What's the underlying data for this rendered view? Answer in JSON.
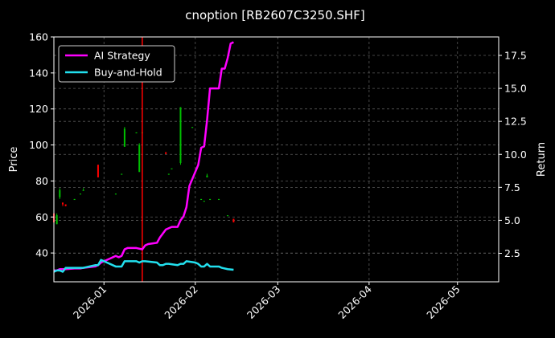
{
  "chart_data": {
    "type": "line",
    "title": "cnoption [RB2607C3250.SHF]",
    "ylabel": "Price",
    "y2label": "Return",
    "xlim": [
      "2025-12-15",
      "2026-05-15"
    ],
    "ylim": [
      24,
      160
    ],
    "y2lim": [
      0.34,
      18.9
    ],
    "x_ticks": [
      "2026-01-01",
      "2026-02-01",
      "2026-03-01",
      "2026-04-01",
      "2026-05-01"
    ],
    "x_tick_labels": [
      "2026-01",
      "2026-02",
      "2026-03",
      "2026-04",
      "2026-05"
    ],
    "y_ticks": [
      40,
      60,
      80,
      100,
      120,
      140,
      160
    ],
    "y2_ticks": [
      2.5,
      5.0,
      7.5,
      10.0,
      12.5,
      15.0,
      17.5
    ],
    "y2_tick_labels": [
      "2.5",
      "5.0",
      "7.5",
      "10.0",
      "12.5",
      "15.0",
      "17.5"
    ],
    "grid": true,
    "legend": "upper-left",
    "vline": {
      "date": "2026-01-14",
      "color": "#ff0000"
    },
    "candles": [
      {
        "date": "2025-12-15",
        "open": 62,
        "close": 57,
        "high": 62,
        "low": 56
      },
      {
        "date": "2025-12-16",
        "open": 56,
        "close": 61,
        "high": 62,
        "low": 56
      },
      {
        "date": "2025-12-17",
        "open": 71,
        "close": 75,
        "high": 76,
        "low": 70
      },
      {
        "date": "2025-12-18",
        "open": 68,
        "close": 67,
        "high": 68,
        "low": 66
      },
      {
        "date": "2025-12-19",
        "open": 67,
        "close": 66,
        "high": 67,
        "low": 66
      },
      {
        "date": "2025-12-22",
        "open": 70,
        "close": 70,
        "high": 70,
        "low": 70
      },
      {
        "date": "2025-12-24",
        "open": 73,
        "close": 73,
        "high": 73,
        "low": 73
      },
      {
        "date": "2025-12-25",
        "open": 75,
        "close": 75,
        "high": 76,
        "low": 75
      },
      {
        "date": "2025-12-30",
        "open": 89,
        "close": 82,
        "high": 89,
        "low": 82
      },
      {
        "date": "2026-01-05",
        "open": 73,
        "close": 73,
        "high": 73,
        "low": 73
      },
      {
        "date": "2026-01-07",
        "open": 84,
        "close": 84,
        "high": 84,
        "low": 84
      },
      {
        "date": "2026-01-08",
        "open": 99,
        "close": 109,
        "high": 110,
        "low": 99
      },
      {
        "date": "2026-01-12",
        "open": 107,
        "close": 107,
        "high": 107,
        "low": 107
      },
      {
        "date": "2026-01-13",
        "open": 85,
        "close": 100,
        "high": 101,
        "low": 85
      },
      {
        "date": "2026-01-14",
        "open": 107,
        "close": 107,
        "high": 107,
        "low": 107
      },
      {
        "date": "2026-01-22",
        "open": 96,
        "close": 95,
        "high": 96,
        "low": 95
      },
      {
        "date": "2026-01-23",
        "open": 84,
        "close": 84,
        "high": 84,
        "low": 84
      },
      {
        "date": "2026-01-24",
        "open": 87,
        "close": 87,
        "high": 87,
        "low": 87
      },
      {
        "date": "2026-01-27",
        "open": 90,
        "close": 121,
        "high": 121,
        "low": 89
      },
      {
        "date": "2026-01-31",
        "open": 110,
        "close": 110,
        "high": 110,
        "low": 110
      },
      {
        "date": "2026-02-03",
        "open": 70,
        "close": 70,
        "high": 70,
        "low": 70
      },
      {
        "date": "2026-02-04",
        "open": 69,
        "close": 69,
        "high": 69,
        "low": 69
      },
      {
        "date": "2026-02-05",
        "open": 82,
        "close": 83,
        "high": 84,
        "low": 82
      },
      {
        "date": "2026-02-06",
        "open": 70,
        "close": 70,
        "high": 70,
        "low": 70
      },
      {
        "date": "2026-02-09",
        "open": 70,
        "close": 70,
        "high": 70,
        "low": 70
      },
      {
        "date": "2026-02-12",
        "open": 61,
        "close": 61,
        "high": 61,
        "low": 61
      },
      {
        "date": "2026-02-14",
        "open": 59,
        "close": 57,
        "high": 59,
        "low": 57
      }
    ],
    "series": [
      {
        "name": "AI Strategy",
        "color": "#ff00ff",
        "axis": "right",
        "points": [
          [
            "2025-12-15",
            1.2
          ],
          [
            "2025-12-16",
            1.2
          ],
          [
            "2025-12-17",
            1.3
          ],
          [
            "2025-12-18",
            1.3
          ],
          [
            "2025-12-19",
            1.3
          ],
          [
            "2025-12-22",
            1.35
          ],
          [
            "2025-12-24",
            1.35
          ],
          [
            "2025-12-25",
            1.4
          ],
          [
            "2025-12-29",
            1.5
          ],
          [
            "2025-12-30",
            1.6
          ],
          [
            "2025-12-31",
            1.8
          ],
          [
            "2026-01-01",
            1.9
          ],
          [
            "2026-01-02",
            2.0
          ],
          [
            "2026-01-03",
            2.1
          ],
          [
            "2026-01-04",
            2.2
          ],
          [
            "2026-01-05",
            2.3
          ],
          [
            "2026-01-06",
            2.2
          ],
          [
            "2026-01-07",
            2.3
          ],
          [
            "2026-01-08",
            2.8
          ],
          [
            "2026-01-09",
            2.9
          ],
          [
            "2026-01-12",
            2.9
          ],
          [
            "2026-01-13",
            2.85
          ],
          [
            "2026-01-14",
            2.8
          ],
          [
            "2026-01-15",
            3.1
          ],
          [
            "2026-01-16",
            3.2
          ],
          [
            "2026-01-19",
            3.3
          ],
          [
            "2026-01-20",
            3.7
          ],
          [
            "2026-01-21",
            4.0
          ],
          [
            "2026-01-22",
            4.3
          ],
          [
            "2026-01-23",
            4.4
          ],
          [
            "2026-01-24",
            4.5
          ],
          [
            "2026-01-26",
            4.5
          ],
          [
            "2026-01-27",
            5.0
          ],
          [
            "2026-01-28",
            5.3
          ],
          [
            "2026-01-29",
            6.0
          ],
          [
            "2026-01-30",
            7.6
          ],
          [
            "2026-02-02",
            9.2
          ],
          [
            "2026-02-03",
            10.5
          ],
          [
            "2026-02-04",
            10.6
          ],
          [
            "2026-02-05",
            12.6
          ],
          [
            "2026-02-06",
            15.0
          ],
          [
            "2026-02-09",
            15.0
          ],
          [
            "2026-02-10",
            16.5
          ],
          [
            "2026-02-11",
            16.5
          ],
          [
            "2026-02-12",
            17.3
          ],
          [
            "2026-02-13",
            18.4
          ],
          [
            "2026-02-14",
            18.5
          ]
        ]
      },
      {
        "name": "Buy-and-Hold",
        "color": "#22e0ee",
        "axis": "right",
        "points": [
          [
            "2025-12-15",
            1.1
          ],
          [
            "2025-12-16",
            1.2
          ],
          [
            "2025-12-17",
            1.2
          ],
          [
            "2025-12-18",
            1.1
          ],
          [
            "2025-12-19",
            1.4
          ],
          [
            "2025-12-22",
            1.4
          ],
          [
            "2025-12-24",
            1.4
          ],
          [
            "2025-12-25",
            1.4
          ],
          [
            "2025-12-29",
            1.6
          ],
          [
            "2025-12-30",
            1.6
          ],
          [
            "2025-12-31",
            2.0
          ],
          [
            "2026-01-02",
            1.8
          ],
          [
            "2026-01-05",
            1.5
          ],
          [
            "2026-01-06",
            1.5
          ],
          [
            "2026-01-07",
            1.5
          ],
          [
            "2026-01-08",
            1.9
          ],
          [
            "2026-01-09",
            1.9
          ],
          [
            "2026-01-12",
            1.9
          ],
          [
            "2026-01-13",
            1.8
          ],
          [
            "2026-01-14",
            1.9
          ],
          [
            "2026-01-15",
            1.9
          ],
          [
            "2026-01-19",
            1.8
          ],
          [
            "2026-01-20",
            1.6
          ],
          [
            "2026-01-21",
            1.6
          ],
          [
            "2026-01-22",
            1.7
          ],
          [
            "2026-01-23",
            1.7
          ],
          [
            "2026-01-26",
            1.6
          ],
          [
            "2026-01-27",
            1.7
          ],
          [
            "2026-01-28",
            1.7
          ],
          [
            "2026-01-29",
            1.9
          ],
          [
            "2026-02-01",
            1.8
          ],
          [
            "2026-02-02",
            1.7
          ],
          [
            "2026-02-03",
            1.5
          ],
          [
            "2026-02-04",
            1.5
          ],
          [
            "2026-02-05",
            1.7
          ],
          [
            "2026-02-06",
            1.5
          ],
          [
            "2026-02-09",
            1.5
          ],
          [
            "2026-02-10",
            1.4
          ],
          [
            "2026-02-12",
            1.3
          ],
          [
            "2026-02-14",
            1.25
          ]
        ]
      }
    ]
  }
}
